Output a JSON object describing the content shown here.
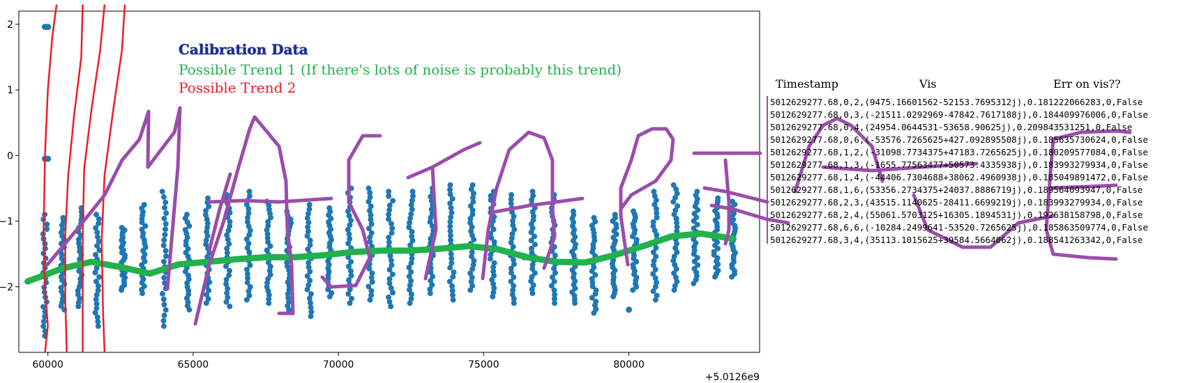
{
  "chart_data": {
    "type": "scatter",
    "x_offset_label": "+5.0126e9",
    "xlim": [
      59000,
      84500
    ],
    "ylim": [
      -3.0,
      2.2
    ],
    "x_ticks": [
      60000,
      65000,
      70000,
      75000,
      80000
    ],
    "x_tick_labels": [
      "60000",
      "65000",
      "70000",
      "75000",
      "80000"
    ],
    "y_ticks": [
      2,
      1,
      0,
      -1,
      -2
    ],
    "y_tick_labels": [
      "2",
      "1",
      "0",
      "−1",
      "−2"
    ],
    "scatter_color": "#1f77b4",
    "scatter_columns": [
      {
        "x": 59900,
        "ymin": -2.75,
        "ymax": -0.9
      },
      {
        "x": 60500,
        "ymin": -2.35,
        "ymax": -0.95
      },
      {
        "x": 61100,
        "ymin": -2.3,
        "ymax": -0.8
      },
      {
        "x": 61700,
        "ymin": -2.6,
        "ymax": -0.9
      },
      {
        "x": 62600,
        "ymin": -2.05,
        "ymax": -1.1
      },
      {
        "x": 63300,
        "ymin": -2.1,
        "ymax": -0.75
      },
      {
        "x": 64000,
        "ymin": -2.6,
        "ymax": -0.55
      },
      {
        "x": 64800,
        "ymin": -2.35,
        "ymax": -0.9
      },
      {
        "x": 65500,
        "ymin": -2.25,
        "ymax": -0.65
      },
      {
        "x": 66200,
        "ymin": -2.3,
        "ymax": -0.6
      },
      {
        "x": 66900,
        "ymin": -2.2,
        "ymax": -0.55
      },
      {
        "x": 67600,
        "ymin": -2.25,
        "ymax": -0.7
      },
      {
        "x": 68300,
        "ymin": -2.35,
        "ymax": -0.85
      },
      {
        "x": 69000,
        "ymin": -2.45,
        "ymax": -0.75
      },
      {
        "x": 69700,
        "ymin": -2.15,
        "ymax": -0.8
      },
      {
        "x": 70400,
        "ymin": -2.25,
        "ymax": -0.5
      },
      {
        "x": 71100,
        "ymin": -2.2,
        "ymax": -0.5
      },
      {
        "x": 71800,
        "ymin": -2.3,
        "ymax": -0.55
      },
      {
        "x": 72500,
        "ymin": -2.25,
        "ymax": -0.55
      },
      {
        "x": 73200,
        "ymin": -2.1,
        "ymax": -0.5
      },
      {
        "x": 73900,
        "ymin": -2.2,
        "ymax": -0.45
      },
      {
        "x": 74600,
        "ymin": -2.05,
        "ymax": -0.45
      },
      {
        "x": 75300,
        "ymin": -2.15,
        "ymax": -0.55
      },
      {
        "x": 76000,
        "ymin": -2.25,
        "ymax": -0.6
      },
      {
        "x": 76700,
        "ymin": -2.1,
        "ymax": -0.55
      },
      {
        "x": 77400,
        "ymin": -2.25,
        "ymax": -0.6
      },
      {
        "x": 78100,
        "ymin": -2.25,
        "ymax": -0.85
      },
      {
        "x": 78800,
        "ymin": -2.4,
        "ymax": -0.95
      },
      {
        "x": 79500,
        "ymin": -2.15,
        "ymax": -0.9
      },
      {
        "x": 80200,
        "ymin": -2.05,
        "ymax": -0.85
      },
      {
        "x": 80900,
        "ymin": -2.2,
        "ymax": -0.55
      },
      {
        "x": 81600,
        "ymin": -2.05,
        "ymax": -0.45
      },
      {
        "x": 82300,
        "ymin": -1.95,
        "ymax": -0.55
      },
      {
        "x": 83000,
        "ymin": -1.85,
        "ymax": -0.65
      },
      {
        "x": 83600,
        "ymin": -1.85,
        "ymax": -0.7
      }
    ],
    "scatter_outliers": [
      {
        "x": 59900,
        "y": 1.96
      },
      {
        "x": 60000,
        "y": 1.96
      },
      {
        "x": 59900,
        "y": -0.05
      },
      {
        "x": 60000,
        "y": -0.05
      },
      {
        "x": 76400,
        "y": -1.55
      },
      {
        "x": 80000,
        "y": -2.35
      }
    ],
    "trend1": {
      "name": "Possible Trend 1",
      "color": "#22b14c",
      "x": [
        59300,
        60500,
        61500,
        62500,
        63500,
        64500,
        65500,
        66500,
        67500,
        68500,
        69500,
        70500,
        71500,
        72500,
        73500,
        74500,
        75500,
        76500,
        77500,
        78500,
        79500,
        80500,
        81500,
        82500,
        83600
      ],
      "y": [
        -1.92,
        -1.72,
        -1.62,
        -1.7,
        -1.8,
        -1.66,
        -1.62,
        -1.58,
        -1.55,
        -1.55,
        -1.52,
        -1.47,
        -1.45,
        -1.45,
        -1.42,
        -1.38,
        -1.43,
        -1.55,
        -1.62,
        -1.63,
        -1.52,
        -1.38,
        -1.23,
        -1.19,
        -1.27
      ]
    },
    "trend2": {
      "name": "Possible Trend 2",
      "color": "#ed1c24",
      "curves": [
        {
          "x": [
            60300,
            60150,
            60000,
            59900,
            59850,
            59900,
            60000,
            59900
          ],
          "y": [
            2.3,
            1.8,
            1.0,
            0.0,
            -1.2,
            -2.0,
            -2.6,
            -3.0
          ]
        },
        {
          "x": [
            61200,
            61150,
            60900,
            60700,
            60600,
            60600,
            60650
          ],
          "y": [
            2.3,
            1.5,
            0.6,
            -0.3,
            -1.2,
            -2.2,
            -3.0
          ]
        },
        {
          "x": [
            61950,
            61800,
            61500,
            61250,
            61200,
            61200,
            61200
          ],
          "y": [
            2.3,
            1.6,
            0.7,
            -0.2,
            -1.2,
            -2.2,
            -3.0
          ]
        },
        {
          "x": [
            62650,
            62550,
            62250,
            61950,
            61850,
            61900,
            61950
          ],
          "y": [
            2.3,
            1.6,
            0.7,
            -0.3,
            -1.3,
            -2.4,
            -3.0
          ]
        }
      ]
    },
    "scribble_color": "#9b4dab"
  },
  "annotations": {
    "title": "Calibration Data",
    "trend1": "Possible Trend 1 (If there's lots of noise is probably this trend)",
    "trend2": "Possible Trend 2",
    "trend1_color": "#22b14c",
    "trend2_color": "#ed1c24",
    "title_color": "#1a2f8c"
  },
  "table": {
    "headers": [
      "Timestamp",
      "Vis",
      "Err on vis??"
    ],
    "rows": [
      "5012629277.68,0,2,(9475.16601562-52153.7695312j),0.181222066283,0,False",
      "5012629277.68,0,3,(-21511.0292969-47842.7617188j),0.184409976006,0,False",
      "5012629277.68,0,4,(24954.0644531-53658.90625j),0.209843531251,0,False",
      "5012629277.68,0,6,(-53576.7265625+427.092895508j),0.185635730624,0,False",
      "5012629277.68,1,2,(-31098.7734375+47183.7265625j),0.180209577084,0,False",
      "5012629277.68,1,3,(-1655.77563477+50573.4335938j),0.183993279934,0,False",
      "5012629277.68,1,4,(-44406.7304688+38062.4960938j),0.185049891472,0,False",
      "5012629277.68,1,6,(53356.2734375+24037.8886719j),0.189564093947,0,False",
      "5012629277.68,2,3,(43515.1140625-28411.6699219j),0.183993279934,0,False",
      "5012629277.68,2,4,(55061.5703125+16305.1894531j),0.192638158798,0,False",
      "5012629277.68,6,6,(-10284.2499641-53520.7265625j),0.185863509774,0,False",
      "5012629277.68,3,4,(35113.1015625+39584.5664062j),0.188541263342,0,False"
    ]
  }
}
